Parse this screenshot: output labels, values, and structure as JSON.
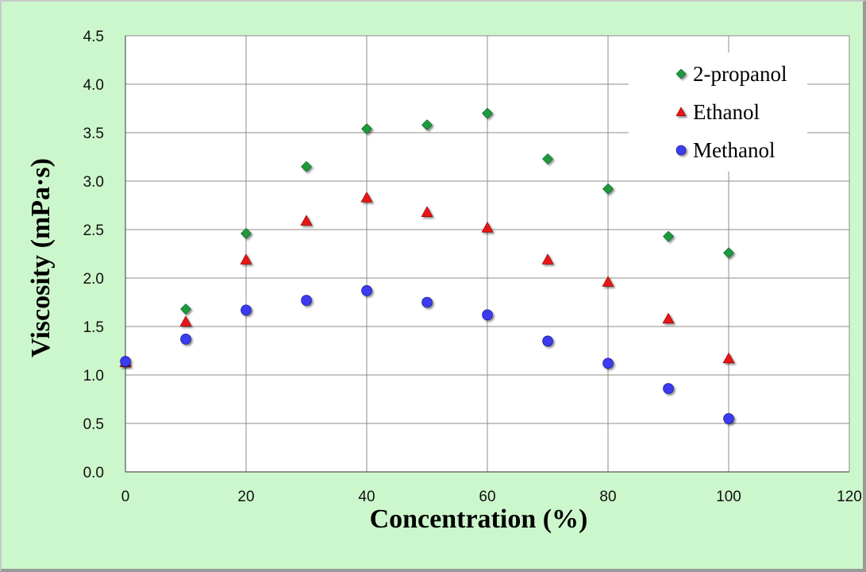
{
  "chart_data": {
    "type": "scatter",
    "xlabel": "Concentration (%)",
    "ylabel": "Viscosity (mPa·s)",
    "xlim": [
      0,
      120
    ],
    "ylim": [
      0,
      4.5
    ],
    "xticks": [
      0,
      20,
      40,
      60,
      80,
      100,
      120
    ],
    "yticks": [
      0.0,
      0.5,
      1.0,
      1.5,
      2.0,
      2.5,
      3.0,
      3.5,
      4.0,
      4.5
    ],
    "xtick_labels": [
      "0",
      "20",
      "40",
      "60",
      "80",
      "100",
      "120"
    ],
    "ytick_labels": [
      "0.0",
      "0.5",
      "1.0",
      "1.5",
      "2.0",
      "2.5",
      "3.0",
      "3.5",
      "4.0",
      "4.5"
    ],
    "grid": true,
    "legend_position": "top-right",
    "series": [
      {
        "name": "2-propanol",
        "marker": "diamond",
        "color": "#1f9a3c",
        "x": [
          10,
          20,
          30,
          40,
          50,
          60,
          70,
          80,
          90,
          100
        ],
        "y": [
          1.68,
          2.46,
          3.15,
          3.54,
          3.58,
          3.7,
          3.23,
          2.92,
          2.43,
          2.26
        ]
      },
      {
        "name": "Ethanol",
        "marker": "triangle",
        "color": "#e81414",
        "x": [
          0,
          10,
          20,
          30,
          40,
          50,
          60,
          70,
          80,
          90,
          100
        ],
        "y": [
          1.13,
          1.55,
          2.19,
          2.59,
          2.83,
          2.68,
          2.52,
          2.19,
          1.96,
          1.58,
          1.17
        ]
      },
      {
        "name": "Methanol",
        "marker": "circle",
        "color": "#3a3af0",
        "x": [
          0,
          10,
          20,
          30,
          40,
          50,
          60,
          70,
          80,
          90,
          100
        ],
        "y": [
          1.14,
          1.37,
          1.67,
          1.77,
          1.87,
          1.75,
          1.62,
          1.35,
          1.12,
          0.86,
          0.55
        ]
      }
    ]
  }
}
